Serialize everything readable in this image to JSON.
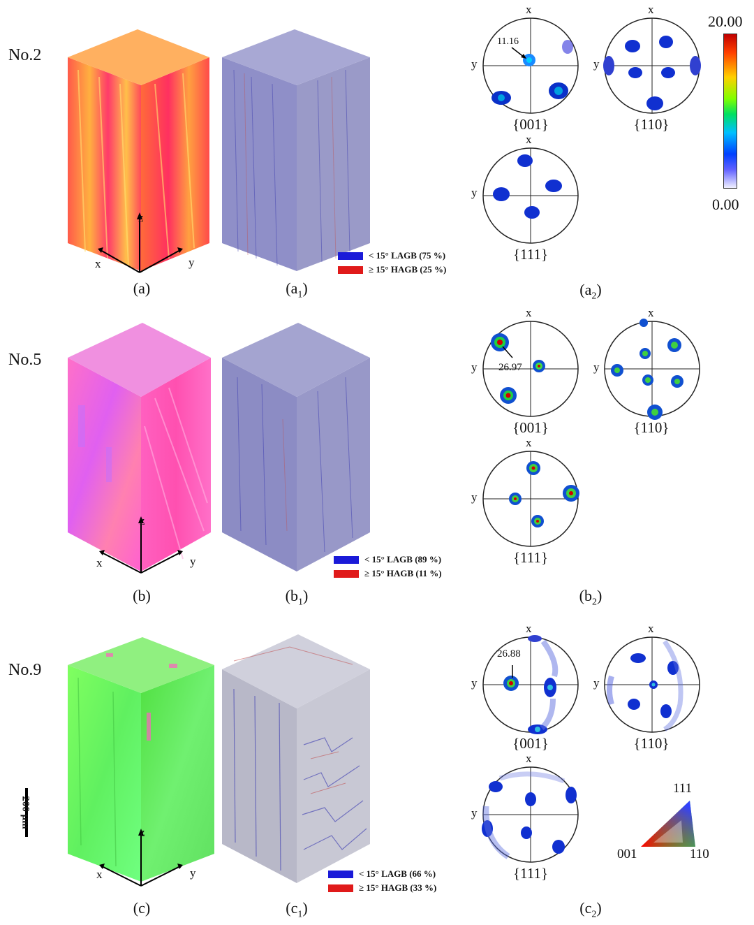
{
  "colors": {
    "lagb": "#1a1ad8",
    "hagb": "#e01a1a"
  },
  "rows": [
    {
      "label": "No.2",
      "panels": {
        "ipf": "(a)",
        "gb": "(a",
        "gb_sub": "1",
        "pf": "(a",
        "pf_sub": "2"
      },
      "legend": {
        "lagb": "< 15° LAGB (75 %)",
        "hagb": "≥ 15° HAGB (25 %)"
      },
      "peak": "11.16"
    },
    {
      "label": "No.5",
      "panels": {
        "ipf": "(b)",
        "gb": "(b",
        "gb_sub": "1",
        "pf": "(b",
        "pf_sub": "2"
      },
      "legend": {
        "lagb": "< 15° LAGB (89 %)",
        "hagb": "≥ 15° HAGB (11 %)"
      },
      "peak": "26.97"
    },
    {
      "label": "No.9",
      "panels": {
        "ipf": "(c)",
        "gb": "(c",
        "gb_sub": "1",
        "pf": "(c",
        "pf_sub": "2"
      },
      "legend": {
        "lagb": "< 15° LAGB (66 %)",
        "hagb": "≥ 15° HAGB (33 %)"
      },
      "peak": "26.88"
    }
  ],
  "axes": {
    "x": "x",
    "y": "y",
    "z": "z"
  },
  "pole_figures": {
    "p001": "{001}",
    "p110": "{110}",
    "p111": "{111}"
  },
  "colorbar": {
    "max": "20.00",
    "min": "0.00"
  },
  "scale_bar": "200 μm",
  "ipf_key": {
    "c111": "111",
    "c001": "001",
    "c110": "110"
  }
}
